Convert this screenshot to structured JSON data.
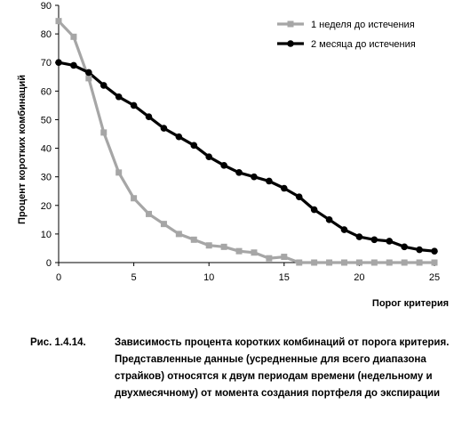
{
  "chart_data": {
    "type": "line",
    "title": "",
    "xlabel": "Порог критерия",
    "ylabel": "Процент коротких комбинаций",
    "xlim": [
      0,
      25
    ],
    "ylim": [
      0,
      90
    ],
    "xticks": [
      0,
      5,
      10,
      15,
      20,
      25
    ],
    "yticks": [
      0,
      10,
      20,
      30,
      40,
      50,
      60,
      70,
      80,
      90
    ],
    "grid": false,
    "legend_position": "top-right",
    "series": [
      {
        "name": "1  неделя до истечения",
        "color": "#a6a6a6",
        "marker": "square",
        "x": [
          0,
          1,
          2,
          3,
          4,
          5,
          6,
          7,
          8,
          9,
          10,
          11,
          12,
          13,
          14,
          15,
          16,
          17,
          18,
          19,
          20,
          21,
          22,
          23,
          24,
          25
        ],
        "values": [
          84.5,
          79,
          64.5,
          45.5,
          31.5,
          22.5,
          17,
          13.5,
          10,
          8,
          6,
          5.5,
          4,
          3.5,
          1.5,
          2,
          0,
          0,
          0,
          0,
          0,
          0,
          0,
          0,
          0,
          0
        ]
      },
      {
        "name": "2  месяца до истечения",
        "color": "#000000",
        "marker": "circle",
        "x": [
          0,
          1,
          2,
          3,
          4,
          5,
          6,
          7,
          8,
          9,
          10,
          11,
          12,
          13,
          14,
          15,
          16,
          17,
          18,
          19,
          20,
          21,
          22,
          23,
          24,
          25
        ],
        "values": [
          70,
          69,
          66.5,
          62,
          58,
          55,
          51,
          47,
          44,
          41,
          37,
          34,
          31.5,
          30,
          28.5,
          26,
          23,
          18.5,
          15,
          11.5,
          9,
          8,
          7.5,
          5.5,
          4.5,
          4
        ]
      }
    ]
  },
  "caption": {
    "label": "Рис. 1.4.14.",
    "text": "Зависимость процента коротких комбинаций от порога критерия. Представленные данные (усредненные для всего диапазона страйков) относятся к двум периодам времени (недельному и двухмесячному) от момента создания портфеля до экспирации"
  }
}
